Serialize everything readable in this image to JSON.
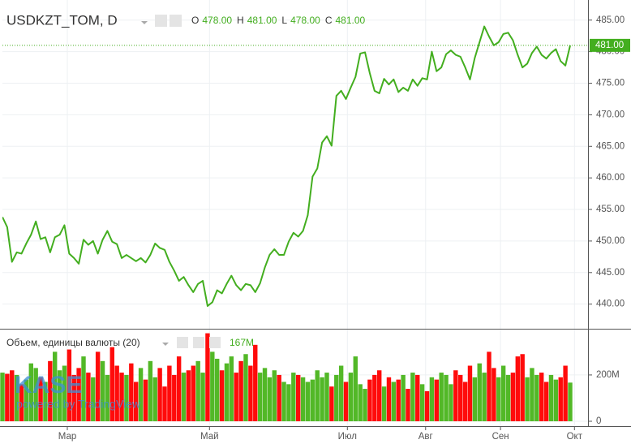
{
  "chart_data": [
    {
      "type": "line",
      "title": "USDKZT_TOM, D",
      "color": "#43ae1f",
      "ohlc": [
        {
          "name": "O",
          "value": 478,
          "label": "478.00"
        },
        {
          "name": "H",
          "value": 481,
          "label": "481.00"
        },
        {
          "name": "L",
          "value": 478,
          "label": "478.00"
        },
        {
          "name": "C",
          "value": 481,
          "label": "481.00"
        }
      ],
      "last_price": {
        "value": 481,
        "label": "481.00"
      },
      "values": [
        453.8,
        452.2,
        446.7,
        448.2,
        448,
        449.6,
        451,
        453.1,
        450.3,
        450.6,
        448.2,
        450.6,
        451,
        452.5,
        448,
        447.3,
        446.4,
        450.2,
        449.4,
        450,
        448,
        450.2,
        451.6,
        449.9,
        449.5,
        447.3,
        447.8,
        447.3,
        446.8,
        447.3,
        446.6,
        447.8,
        449.6,
        448.9,
        448.6,
        446.7,
        445.3,
        443.7,
        444.3,
        443,
        441.9,
        443.2,
        443.7,
        439.7,
        440.3,
        442.2,
        441.7,
        443.2,
        444.5,
        443,
        442.2,
        443.2,
        443,
        441.9,
        443.3,
        445.8,
        447.8,
        448.7,
        447.8,
        447.8,
        449.9,
        451.3,
        450.7,
        451.6,
        454.1,
        460.2,
        461.5,
        465.6,
        466.6,
        465.1,
        473,
        473.8,
        472.5,
        474.3,
        476,
        479.7,
        479.9,
        476.6,
        473.8,
        473.4,
        475.7,
        474.8,
        475.6,
        473.6,
        474.3,
        473.8,
        475.6,
        474.6,
        475.8,
        475.6,
        480,
        476.9,
        477.5,
        479.6,
        480.2,
        479.5,
        479.2,
        477.5,
        475.6,
        479,
        481.5,
        484,
        482.4,
        481,
        481.5,
        482.8,
        483,
        481.8,
        479.5,
        477.5,
        478.1,
        479.8,
        480.8,
        479.5,
        478.9,
        479.8,
        480.4,
        478.5,
        477.8,
        481
      ],
      "xlim": [
        0,
        119
      ],
      "ylim": [
        436.1,
        487.8
      ],
      "yticks": [
        {
          "value": 440,
          "label": "440.00"
        },
        {
          "value": 445,
          "label": "445.00"
        },
        {
          "value": 450,
          "label": "450.00"
        },
        {
          "value": 455,
          "label": "455.00"
        },
        {
          "value": 460,
          "label": "460.00"
        },
        {
          "value": 465,
          "label": "465.00"
        },
        {
          "value": 470,
          "label": "470.00"
        },
        {
          "value": 475,
          "label": "475.00"
        },
        {
          "value": 480,
          "label": "480.00"
        },
        {
          "value": 485,
          "label": "485.00"
        }
      ],
      "grid": true
    },
    {
      "type": "bar",
      "title": "Объем, единицы валюты (20)",
      "last_value": {
        "value": 167,
        "label": "167M"
      },
      "up_color": "#52b827",
      "down_color": "#ff0b0b",
      "values": [
        210,
        205,
        220,
        200,
        160,
        180,
        250,
        230,
        190,
        170,
        260,
        300,
        220,
        240,
        310,
        200,
        230,
        280,
        210,
        190,
        300,
        260,
        200,
        320,
        240,
        210,
        200,
        250,
        170,
        230,
        180,
        260,
        190,
        230,
        150,
        240,
        200,
        280,
        210,
        220,
        240,
        260,
        210,
        380,
        300,
        270,
        220,
        250,
        280,
        210,
        260,
        290,
        240,
        330,
        210,
        230,
        190,
        220,
        200,
        170,
        160,
        210,
        200,
        190,
        170,
        180,
        220,
        190,
        210,
        150,
        200,
        240,
        170,
        210,
        280,
        160,
        140,
        180,
        200,
        220,
        150,
        190,
        170,
        180,
        200,
        140,
        210,
        200,
        160,
        130,
        190,
        180,
        210,
        200,
        160,
        220,
        200,
        170,
        240,
        190,
        250,
        210,
        300,
        230,
        190,
        240,
        200,
        210,
        280,
        290,
        190,
        230,
        200,
        210,
        170,
        200,
        180,
        190,
        240,
        167
      ],
      "xlim": [
        0,
        119
      ],
      "xticks": [
        {
          "value": 13.6,
          "label": "Мар"
        },
        {
          "value": 43.4,
          "label": "Май"
        },
        {
          "value": 72.3,
          "label": "Июл"
        },
        {
          "value": 88.7,
          "label": "Авг"
        },
        {
          "value": 104.4,
          "label": "Сен"
        },
        {
          "value": 119.9,
          "label": "Окт"
        }
      ],
      "ylim": [
        0,
        389
      ],
      "yticks": [
        0,
        {
          "value": 200,
          "label": "200M"
        }
      ],
      "grid": true
    }
  ],
  "watermark": {
    "logo": "KASE",
    "text": "powered by TradingView"
  }
}
